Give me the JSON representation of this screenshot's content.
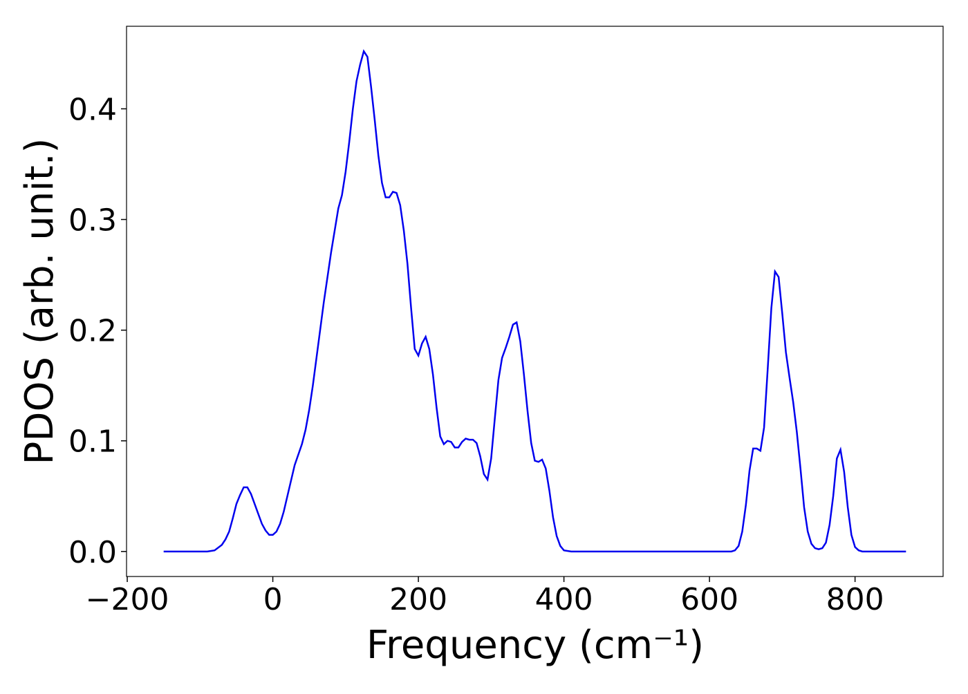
{
  "chart_data": {
    "type": "line",
    "xlabel": "Frequency (cm⁻¹)",
    "ylabel": "PDOS (arb. unit.)",
    "x": [
      -150,
      -100,
      -90,
      -80,
      -70,
      -65,
      -60,
      -55,
      -50,
      -45,
      -40,
      -35,
      -30,
      -25,
      -20,
      -15,
      -10,
      -5,
      0,
      5,
      10,
      15,
      20,
      25,
      30,
      40,
      45,
      50,
      55,
      60,
      65,
      70,
      80,
      85,
      90,
      95,
      100,
      105,
      110,
      115,
      120,
      125,
      130,
      135,
      140,
      145,
      150,
      155,
      160,
      165,
      170,
      175,
      180,
      185,
      190,
      195,
      200,
      205,
      210,
      215,
      220,
      225,
      230,
      235,
      240,
      245,
      250,
      255,
      260,
      265,
      270,
      275,
      280,
      285,
      290,
      295,
      300,
      305,
      310,
      315,
      320,
      325,
      330,
      335,
      340,
      345,
      350,
      355,
      360,
      365,
      370,
      375,
      380,
      385,
      390,
      395,
      400,
      410,
      630,
      635,
      640,
      645,
      650,
      655,
      660,
      665,
      670,
      675,
      680,
      685,
      690,
      695,
      700,
      705,
      710,
      715,
      720,
      725,
      730,
      735,
      740,
      745,
      750,
      755,
      760,
      765,
      770,
      775,
      780,
      785,
      790,
      795,
      800,
      805,
      810,
      870
    ],
    "series": [
      {
        "name": "PDOS",
        "color": "#0000ee",
        "values": [
          0,
          0,
          0,
          0.001,
          0.006,
          0.011,
          0.018,
          0.03,
          0.043,
          0.051,
          0.058,
          0.058,
          0.052,
          0.043,
          0.034,
          0.025,
          0.019,
          0.015,
          0.015,
          0.018,
          0.025,
          0.036,
          0.05,
          0.064,
          0.078,
          0.097,
          0.11,
          0.128,
          0.15,
          0.175,
          0.2,
          0.225,
          0.27,
          0.29,
          0.31,
          0.322,
          0.343,
          0.37,
          0.4,
          0.425,
          0.44,
          0.452,
          0.447,
          0.42,
          0.39,
          0.358,
          0.333,
          0.32,
          0.32,
          0.325,
          0.324,
          0.313,
          0.29,
          0.26,
          0.22,
          0.183,
          0.177,
          0.188,
          0.194,
          0.183,
          0.16,
          0.13,
          0.104,
          0.097,
          0.1,
          0.099,
          0.094,
          0.094,
          0.099,
          0.102,
          0.101,
          0.101,
          0.098,
          0.086,
          0.07,
          0.065,
          0.084,
          0.12,
          0.155,
          0.175,
          0.184,
          0.194,
          0.205,
          0.207,
          0.19,
          0.16,
          0.127,
          0.098,
          0.082,
          0.081,
          0.083,
          0.075,
          0.055,
          0.031,
          0.014,
          0.005,
          0.001,
          0,
          0,
          0.001,
          0.005,
          0.018,
          0.042,
          0.073,
          0.093,
          0.093,
          0.091,
          0.112,
          0.165,
          0.22,
          0.253,
          0.248,
          0.215,
          0.18,
          0.157,
          0.135,
          0.108,
          0.075,
          0.04,
          0.018,
          0.007,
          0.003,
          0.002,
          0.003,
          0.008,
          0.024,
          0.05,
          0.084,
          0.092,
          0.072,
          0.04,
          0.015,
          0.004,
          0.001,
          0,
          0
        ]
      }
    ],
    "xlim": [
      -201,
      921
    ],
    "ylim": [
      -0.0226,
      0.4746
    ],
    "xticks": [
      {
        "value": -200,
        "label": "−200"
      },
      0,
      200,
      400,
      600,
      800
    ],
    "yticks": [
      {
        "value": 0,
        "label": "0.0"
      },
      0.1,
      0.2,
      0.3,
      0.4
    ]
  }
}
